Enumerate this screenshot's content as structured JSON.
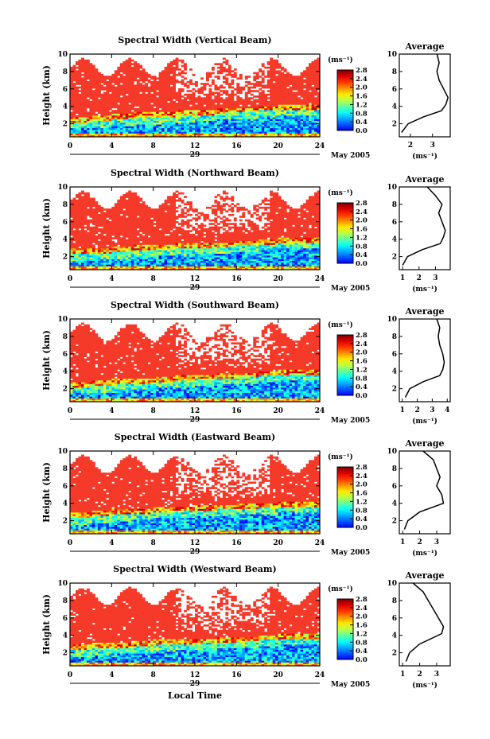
{
  "figure": {
    "xlabel": "Local Time",
    "unit_label": "(ms⁻¹)",
    "avg_title": "Average",
    "avg_xlabel": "(ms⁻¹)",
    "date_suffix": "May 2005",
    "colorbar_ticks": [
      "2.8",
      "2.4",
      "2.0",
      "1.6",
      "1.2",
      "0.8",
      "0.4",
      "0.0"
    ],
    "ylabel": "Height (km)"
  },
  "chart_data": [
    {
      "type": "heatmap",
      "title": "Spectral Width (Vertical Beam)",
      "ylabel": "Height (km)",
      "x": [
        0,
        4,
        8,
        12,
        16,
        20,
        24
      ],
      "xlabel_center": "29",
      "ylim": [
        0.5,
        10
      ],
      "yticks": [
        2,
        4,
        6,
        8,
        10
      ],
      "colorbar_range": [
        0,
        2.8
      ],
      "boundary_height_km": [
        2.5,
        2.6,
        2.8,
        3.0,
        3.0,
        3.2,
        3.3,
        3.5,
        3.6,
        3.8,
        3.9,
        4.0,
        4.2
      ],
      "average_profile": {
        "xlim": [
          1.5,
          3.8
        ],
        "xticks": [
          2,
          3
        ],
        "values": [
          [
            1.6,
            1.0
          ],
          [
            1.9,
            2.0
          ],
          [
            2.6,
            2.8
          ],
          [
            3.4,
            3.5
          ],
          [
            3.6,
            4.2
          ],
          [
            3.7,
            5.0
          ],
          [
            3.5,
            6.0
          ],
          [
            3.3,
            7.0
          ],
          [
            3.2,
            8.0
          ],
          [
            3.3,
            9.0
          ],
          [
            3.2,
            10.0
          ]
        ]
      }
    },
    {
      "type": "heatmap",
      "title": "Spectral Width (Northward Beam)",
      "ylabel": "Height (km)",
      "x": [
        0,
        4,
        8,
        12,
        16,
        20,
        24
      ],
      "xlabel_center": "29",
      "ylim": [
        0.5,
        10
      ],
      "yticks": [
        2,
        4,
        6,
        8,
        10
      ],
      "colorbar_range": [
        0,
        2.8
      ],
      "boundary_height_km": [
        2.6,
        2.7,
        2.8,
        3.0,
        3.1,
        3.2,
        3.3,
        3.4,
        3.6,
        3.7,
        3.9,
        4.0,
        4.1
      ],
      "average_profile": {
        "xlim": [
          0.8,
          3.9
        ],
        "xticks": [
          1,
          2,
          3
        ],
        "values": [
          [
            1.0,
            1.0
          ],
          [
            1.3,
            2.0
          ],
          [
            2.2,
            2.8
          ],
          [
            3.3,
            3.5
          ],
          [
            3.5,
            4.3
          ],
          [
            3.6,
            5.0
          ],
          [
            3.4,
            6.0
          ],
          [
            3.2,
            7.0
          ],
          [
            3.4,
            8.0
          ],
          [
            3.0,
            9.0
          ],
          [
            2.5,
            10.0
          ]
        ]
      }
    },
    {
      "type": "heatmap",
      "title": "Spectral Width (Southward Beam)",
      "ylabel": "Height (km)",
      "x": [
        0,
        4,
        8,
        12,
        16,
        20,
        24
      ],
      "xlabel_center": "29",
      "ylim": [
        0.5,
        10
      ],
      "yticks": [
        2,
        4,
        6,
        8,
        10
      ],
      "colorbar_range": [
        0,
        2.8
      ],
      "boundary_height_km": [
        2.5,
        2.6,
        2.8,
        2.9,
        3.1,
        3.2,
        3.4,
        3.5,
        3.6,
        3.8,
        3.9,
        4.0,
        4.1
      ],
      "average_profile": {
        "xlim": [
          0.8,
          4.2
        ],
        "xticks": [
          1,
          2,
          3,
          4
        ],
        "values": [
          [
            1.2,
            1.0
          ],
          [
            1.5,
            2.0
          ],
          [
            2.4,
            2.8
          ],
          [
            3.5,
            3.5
          ],
          [
            3.7,
            4.2
          ],
          [
            3.8,
            5.0
          ],
          [
            3.7,
            6.0
          ],
          [
            3.5,
            7.0
          ],
          [
            3.4,
            8.0
          ],
          [
            3.5,
            9.0
          ],
          [
            3.3,
            10.0
          ]
        ]
      }
    },
    {
      "type": "heatmap",
      "title": "Spectral Width (Eastward Beam)",
      "ylabel": "Height (km)",
      "x": [
        0,
        4,
        8,
        12,
        16,
        20,
        24
      ],
      "xlabel_center": "29",
      "ylim": [
        0.5,
        10
      ],
      "yticks": [
        2,
        4,
        6,
        8,
        10
      ],
      "colorbar_range": [
        0,
        2.8
      ],
      "boundary_height_km": [
        2.6,
        2.8,
        3.0,
        3.1,
        3.3,
        3.4,
        3.5,
        3.6,
        3.7,
        3.8,
        3.9,
        4.0,
        4.1
      ],
      "average_profile": {
        "xlim": [
          0.8,
          3.8
        ],
        "xticks": [
          1,
          2,
          3
        ],
        "values": [
          [
            1.1,
            1.0
          ],
          [
            1.3,
            2.0
          ],
          [
            2.0,
            3.0
          ],
          [
            3.4,
            4.0
          ],
          [
            3.3,
            5.0
          ],
          [
            3.0,
            6.0
          ],
          [
            3.2,
            7.0
          ],
          [
            3.0,
            8.0
          ],
          [
            2.8,
            9.0
          ],
          [
            2.2,
            10.0
          ]
        ]
      }
    },
    {
      "type": "heatmap",
      "title": "Spectral Width (Westward Beam)",
      "ylabel": "Height (km)",
      "x": [
        0,
        4,
        8,
        12,
        16,
        20,
        24
      ],
      "xlabel_center": "29",
      "ylim": [
        0.5,
        10
      ],
      "yticks": [
        2,
        4,
        6,
        8,
        10
      ],
      "colorbar_range": [
        0,
        2.8
      ],
      "boundary_height_km": [
        2.6,
        2.8,
        2.9,
        3.0,
        3.2,
        3.3,
        3.4,
        3.5,
        3.6,
        3.8,
        3.9,
        4.0,
        4.1
      ],
      "average_profile": {
        "xlim": [
          0.8,
          3.8
        ],
        "xticks": [
          1,
          2,
          3
        ],
        "values": [
          [
            1.2,
            1.0
          ],
          [
            1.4,
            2.0
          ],
          [
            2.0,
            3.0
          ],
          [
            3.3,
            4.2
          ],
          [
            3.4,
            5.0
          ],
          [
            3.1,
            6.0
          ],
          [
            2.8,
            7.0
          ],
          [
            2.5,
            8.0
          ],
          [
            2.2,
            9.0
          ],
          [
            1.6,
            10.0
          ]
        ]
      }
    }
  ]
}
